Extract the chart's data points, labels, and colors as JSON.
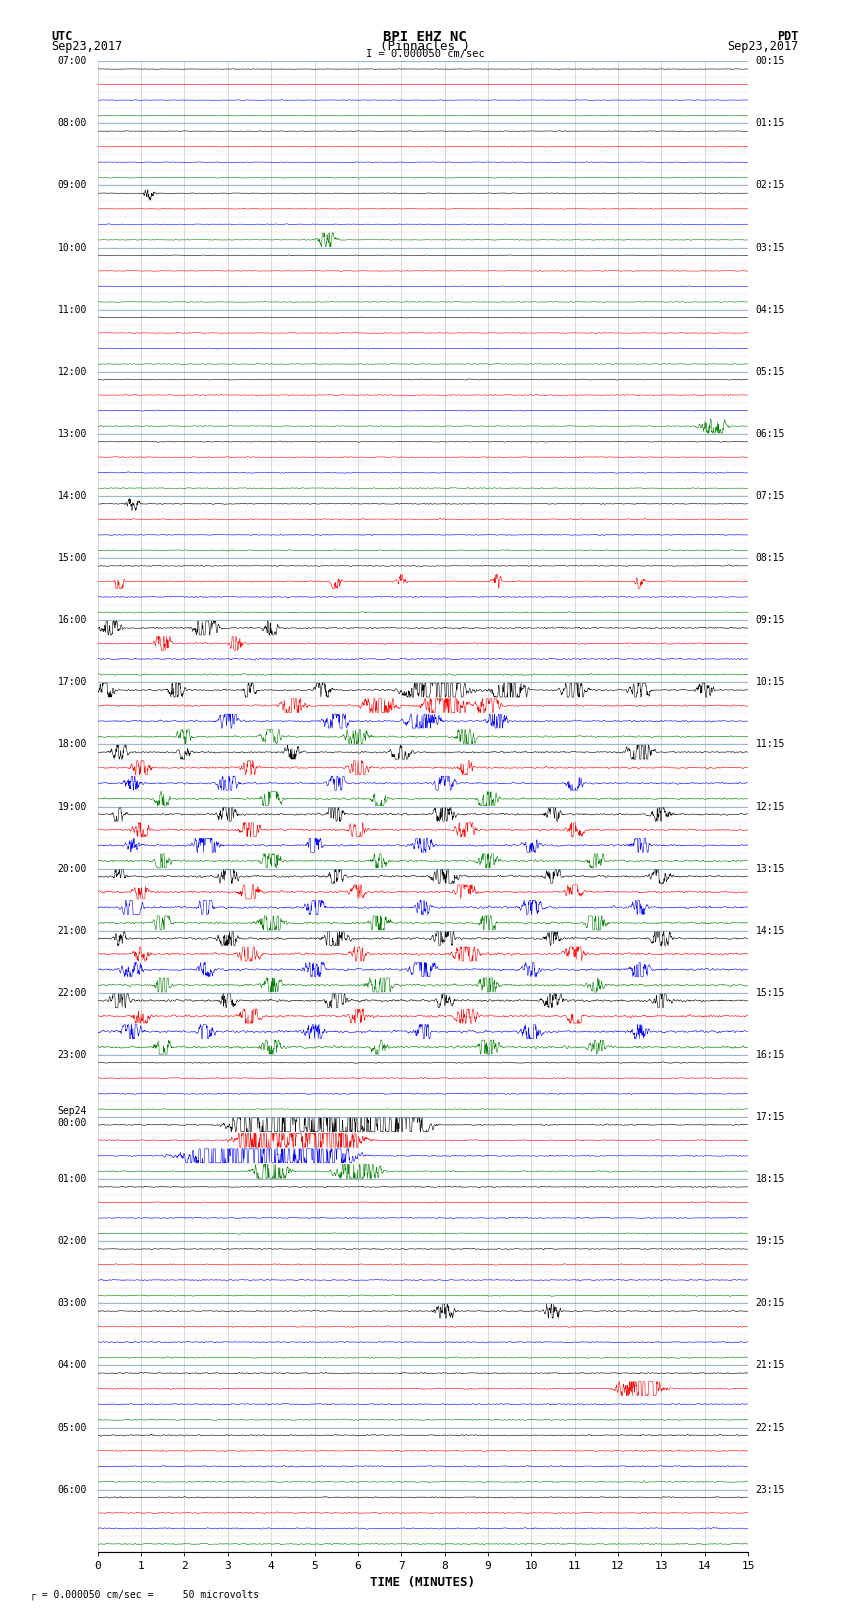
{
  "title_line1": "BPI EHZ NC",
  "title_line2": "(Pinnacles )",
  "scale_label": "I = 0.000050 cm/sec",
  "left_timezone": "UTC",
  "left_date": "Sep23,2017",
  "right_timezone": "PDT",
  "right_date": "Sep23,2017",
  "xlabel": "TIME (MINUTES)",
  "bottom_note": "= 0.000050 cm/sec =     50 microvolts",
  "left_times_labeled": [
    "07:00",
    "08:00",
    "09:00",
    "10:00",
    "11:00",
    "12:00",
    "13:00",
    "14:00",
    "15:00",
    "16:00",
    "17:00",
    "18:00",
    "19:00",
    "20:00",
    "21:00",
    "22:00",
    "23:00",
    "Sep24\n00:00",
    "01:00",
    "02:00",
    "03:00",
    "04:00",
    "05:00",
    "06:00"
  ],
  "right_times_labeled": [
    "00:15",
    "01:15",
    "02:15",
    "03:15",
    "04:15",
    "05:15",
    "06:15",
    "07:15",
    "08:15",
    "09:15",
    "10:15",
    "11:15",
    "12:15",
    "13:15",
    "14:15",
    "15:15",
    "16:15",
    "17:15",
    "18:15",
    "19:15",
    "20:15",
    "21:15",
    "22:15",
    "23:15"
  ],
  "num_rows": 96,
  "rows_per_hour": 4,
  "x_min": 0,
  "x_max": 15,
  "x_ticks": [
    0,
    1,
    2,
    3,
    4,
    5,
    6,
    7,
    8,
    9,
    10,
    11,
    12,
    13,
    14,
    15
  ],
  "bg_color": "#ffffff",
  "grid_color": "#999999",
  "sep_line_color": "#6688bb",
  "trace_colors": [
    "black",
    "red",
    "blue",
    "green"
  ],
  "base_noise": 0.02,
  "mid_noise": 0.06,
  "high_noise": 0.1
}
